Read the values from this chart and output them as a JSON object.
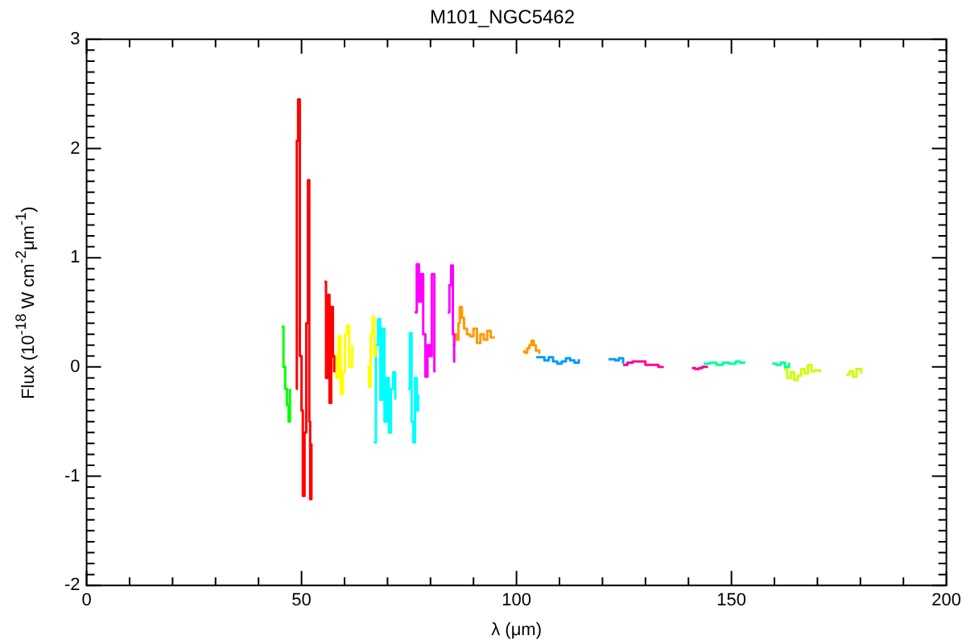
{
  "chart_data": {
    "type": "step",
    "title": "M101_NGC5462",
    "xlabel": "λ (μm)",
    "ylabel": "Flux (10$^{-18}$ W cm$^{-2}$μm$^{-1}$)",
    "xlim": [
      0,
      200
    ],
    "ylim": [
      -2,
      3
    ],
    "xticks": [
      0,
      {
        "value": 10,
        "label": null
      },
      {
        "value": 20,
        "label": null
      },
      {
        "value": 30,
        "label": null
      },
      {
        "value": 40,
        "label": null
      },
      50,
      {
        "value": 60,
        "label": null
      },
      {
        "value": 70,
        "label": null
      },
      {
        "value": 80,
        "label": null
      },
      {
        "value": 90,
        "label": null
      },
      100,
      {
        "value": 110,
        "label": null
      },
      {
        "value": 120,
        "label": null
      },
      {
        "value": 130,
        "label": null
      },
      {
        "value": 140,
        "label": null
      },
      150,
      {
        "value": 160,
        "label": null
      },
      {
        "value": 170,
        "label": null
      },
      {
        "value": 180,
        "label": null
      },
      {
        "value": 190,
        "label": null
      },
      200
    ],
    "yticks": [
      -2,
      {
        "value": -1.9,
        "label": null
      },
      {
        "value": -1.8,
        "label": null
      },
      {
        "value": -1.7,
        "label": null
      },
      {
        "value": -1.6,
        "label": null
      },
      {
        "value": -1.5,
        "label": null
      },
      {
        "value": -1.4,
        "label": null
      },
      {
        "value": -1.3,
        "label": null
      },
      {
        "value": -1.2,
        "label": null
      },
      {
        "value": -1.1,
        "label": null
      },
      -1,
      {
        "value": -0.9,
        "label": null
      },
      {
        "value": -0.8,
        "label": null
      },
      {
        "value": -0.7,
        "label": null
      },
      {
        "value": -0.6,
        "label": null
      },
      {
        "value": -0.5,
        "label": null
      },
      {
        "value": -0.4,
        "label": null
      },
      {
        "value": -0.3,
        "label": null
      },
      {
        "value": -0.2,
        "label": null
      },
      {
        "value": -0.1,
        "label": null
      },
      0,
      {
        "value": 0.1,
        "label": null
      },
      {
        "value": 0.2,
        "label": null
      },
      {
        "value": 0.3,
        "label": null
      },
      {
        "value": 0.4,
        "label": null
      },
      {
        "value": 0.5,
        "label": null
      },
      {
        "value": 0.6,
        "label": null
      },
      {
        "value": 0.7,
        "label": null
      },
      {
        "value": 0.8,
        "label": null
      },
      {
        "value": 0.9,
        "label": null
      },
      1,
      {
        "value": 1.1,
        "label": null
      },
      {
        "value": 1.2,
        "label": null
      },
      {
        "value": 1.3,
        "label": null
      },
      {
        "value": 1.4,
        "label": null
      },
      {
        "value": 1.5,
        "label": null
      },
      {
        "value": 1.6,
        "label": null
      },
      {
        "value": 1.7,
        "label": null
      },
      {
        "value": 1.8,
        "label": null
      },
      {
        "value": 1.9,
        "label": null
      },
      2,
      {
        "value": 2.1,
        "label": null
      },
      {
        "value": 2.2,
        "label": null
      },
      {
        "value": 2.3,
        "label": null
      },
      {
        "value": 2.4,
        "label": null
      },
      {
        "value": 2.5,
        "label": null
      },
      {
        "value": 2.6,
        "label": null
      },
      {
        "value": 2.7,
        "label": null
      },
      {
        "value": 2.8,
        "label": null
      },
      {
        "value": 2.9,
        "label": null
      },
      3
    ],
    "series": [
      {
        "color": "#00ff00",
        "x": [
          45.4,
          45.8,
          46.2,
          46.6,
          47.0,
          47.3
        ],
        "values": [
          0.37,
          0.0,
          -0.2,
          -0.35,
          -0.5,
          -0.2
        ]
      },
      {
        "color": "#ff0000",
        "x": [
          48.7,
          48.9,
          49.2,
          49.6,
          50.0,
          50.3,
          50.7,
          51.1,
          51.5,
          51.8,
          52.0,
          52.3
        ],
        "values": [
          -0.2,
          2.07,
          2.45,
          0.1,
          -0.4,
          -1.18,
          -0.6,
          0.4,
          1.71,
          -0.5,
          -1.21,
          -0.7
        ]
      },
      {
        "color": "#ff0000",
        "x": [
          55.3,
          55.7,
          56.1,
          56.5,
          56.9,
          57.3,
          57.6
        ],
        "values": [
          0.78,
          -0.1,
          0.66,
          -0.33,
          0.55,
          0.1,
          -0.05
        ]
      },
      {
        "color": "#ffff00",
        "x": [
          57.6,
          58.1,
          58.6,
          59.1,
          59.6,
          60.1,
          60.6,
          61.1,
          61.8
        ],
        "values": [
          0.1,
          -0.1,
          0.28,
          -0.25,
          -0.05,
          0.3,
          0.38,
          0.0,
          0.2
        ]
      },
      {
        "color": "#ffff00",
        "x": [
          65.3,
          65.7,
          66.1,
          66.5,
          66.9,
          67.2
        ],
        "values": [
          0.0,
          -0.18,
          0.3,
          0.46,
          0.1,
          0.2
        ]
      },
      {
        "color": "#00ffff",
        "x": [
          66.8,
          67.3,
          67.8,
          68.3,
          68.8,
          69.3,
          69.8,
          70.3,
          70.8,
          71.3,
          71.8
        ],
        "values": [
          -0.69,
          0.2,
          0.44,
          -0.3,
          0.35,
          -0.5,
          -0.1,
          -0.6,
          -0.2,
          -0.05,
          -0.3
        ]
      },
      {
        "color": "#00ffff",
        "x": [
          74.8,
          75.2,
          75.6,
          76.0,
          76.4,
          76.8,
          77.1
        ],
        "values": [
          -0.2,
          0.31,
          -0.5,
          -0.69,
          -0.1,
          -0.4,
          -0.25
        ]
      },
      {
        "color": "#ff00ff",
        "x": [
          76.3,
          76.8,
          77.3,
          77.8,
          78.3,
          78.8,
          79.3,
          79.8,
          80.3,
          80.9
        ],
        "values": [
          0.5,
          0.94,
          0.6,
          0.85,
          0.3,
          -0.09,
          0.2,
          0.1,
          0.85,
          -0.05
        ]
      },
      {
        "color": "#ff00ff",
        "x": [
          84.0,
          84.4,
          84.8,
          85.2,
          85.5
        ],
        "values": [
          0.5,
          0.75,
          0.93,
          0.3,
          0.04
        ]
      },
      {
        "color": "#ff9900",
        "x": [
          85.1,
          85.6,
          86.1,
          86.5,
          86.8,
          87.3,
          87.8,
          88.5,
          89.2,
          90.0,
          90.8,
          91.6,
          92.4,
          93.2,
          94.0,
          94.7
        ],
        "values": [
          0.2,
          0.3,
          0.25,
          0.4,
          0.55,
          0.45,
          0.35,
          0.3,
          0.28,
          0.35,
          0.22,
          0.3,
          0.25,
          0.33,
          0.27,
          0.28
        ]
      },
      {
        "color": "#ff9900",
        "x": [
          101.5,
          102.0,
          102.5,
          103.0,
          103.5,
          104.0,
          104.5,
          105.3
        ],
        "values": [
          0.14,
          0.13,
          0.17,
          0.2,
          0.24,
          0.2,
          0.15,
          0.12
        ]
      },
      {
        "color": "#0099ff",
        "x": [
          104.6,
          105.5,
          106.5,
          107.5,
          108.5,
          109.5,
          110.5,
          111.5,
          112.5,
          113.5,
          114.5
        ],
        "values": [
          0.09,
          0.09,
          0.06,
          0.09,
          0.05,
          0.03,
          0.05,
          0.08,
          0.06,
          0.04,
          0.07
        ]
      },
      {
        "color": "#0099ff",
        "x": [
          121.4,
          122.2,
          123.0,
          123.8,
          124.8
        ],
        "values": [
          0.07,
          0.07,
          0.06,
          0.08,
          0.03
        ]
      },
      {
        "color": "#ff0099",
        "x": [
          124.8,
          125.8,
          127.0,
          128.5,
          130.0,
          131.5,
          133.0,
          134.0
        ],
        "values": [
          0.02,
          0.04,
          0.05,
          0.05,
          0.02,
          0.02,
          0.0,
          -0.01
        ]
      },
      {
        "color": "#ff0099",
        "x": [
          140.8,
          141.6,
          142.4,
          143.2,
          144.3
        ],
        "values": [
          -0.01,
          -0.02,
          -0.01,
          0.0,
          0.01
        ]
      },
      {
        "color": "#00ff99",
        "x": [
          143.5,
          145.0,
          146.5,
          148.0,
          149.5,
          151.0,
          152.0,
          153.0
        ],
        "values": [
          0.03,
          0.04,
          0.02,
          0.04,
          0.03,
          0.05,
          0.04,
          0.05
        ]
      },
      {
        "color": "#00ff99",
        "x": [
          159.5,
          160.5,
          161.5,
          162.5,
          163.4
        ],
        "values": [
          0.03,
          0.02,
          0.04,
          0.0,
          0.04
        ]
      },
      {
        "color": "#ccff00",
        "x": [
          162.2,
          163.0,
          163.8,
          164.6,
          165.4,
          166.2,
          167.0,
          167.8,
          168.6,
          169.4,
          170.6
        ],
        "values": [
          -0.02,
          -0.1,
          -0.05,
          -0.12,
          -0.08,
          -0.02,
          -0.06,
          0.02,
          -0.04,
          -0.03,
          -0.05
        ]
      },
      {
        "color": "#ccff00",
        "x": [
          176.7,
          177.5,
          178.3,
          179.1,
          180.2
        ],
        "values": [
          -0.07,
          -0.04,
          -0.09,
          -0.02,
          -0.06
        ]
      }
    ]
  }
}
